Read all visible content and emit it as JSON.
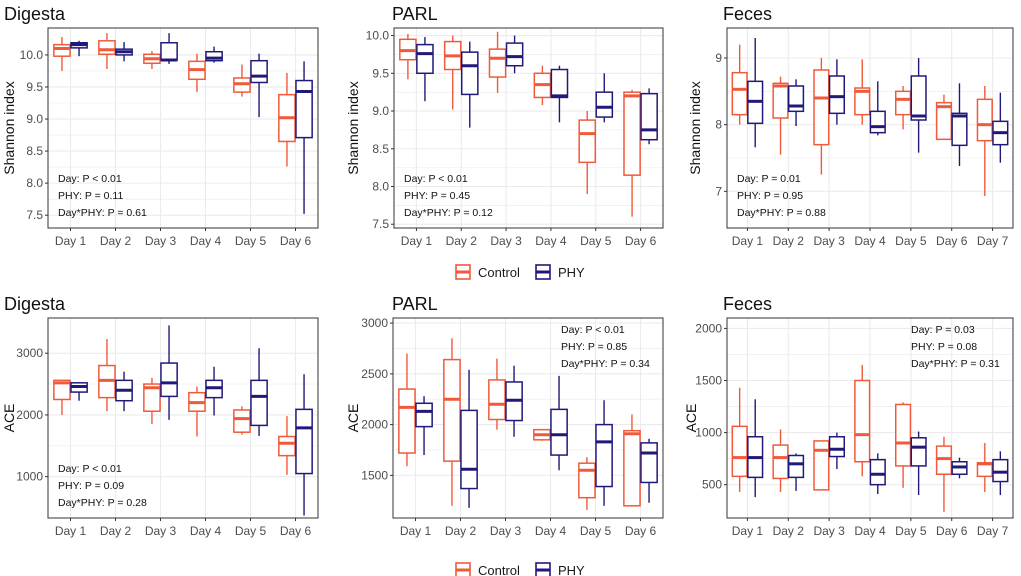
{
  "legend": {
    "items": [
      {
        "label": "Control",
        "color": "#F05A3A"
      },
      {
        "label": "PHY",
        "color": "#1F1A7A"
      }
    ]
  },
  "colors": {
    "control": "#F05A3A",
    "phy": "#1F1A7A",
    "grid": "#EBEBEB",
    "axis": "#333333"
  },
  "chart_data": [
    {
      "type": "boxplot",
      "title": "Digesta",
      "ylabel": "Shannon index",
      "ylim": [
        7.3,
        10.42
      ],
      "yticks": [
        7.5,
        8.0,
        8.5,
        9.0,
        9.5,
        10.0
      ],
      "ytick_labels": [
        "7.5",
        "8.0",
        "8.5",
        "9.0",
        "9.5",
        "10.0"
      ],
      "categories": [
        "Day 1",
        "Day 2",
        "Day 3",
        "Day 4",
        "Day 5",
        "Day 6"
      ],
      "annotations": [
        "Day: P < 0.01",
        "PHY: P = 0.11",
        "Day*PHY: P = 0.61"
      ],
      "annotation_pos": "bottom-left",
      "series": [
        {
          "name": "Control",
          "boxes": [
            [
              9.75,
              9.98,
              10.1,
              10.16,
              10.28
            ],
            [
              9.78,
              10.01,
              10.08,
              10.22,
              10.34
            ],
            [
              9.78,
              9.87,
              9.94,
              10.01,
              10.06
            ],
            [
              9.42,
              9.62,
              9.77,
              9.9,
              10.02
            ],
            [
              9.35,
              9.42,
              9.55,
              9.64,
              9.85
            ],
            [
              8.26,
              8.65,
              9.02,
              9.38,
              9.72
            ]
          ]
        },
        {
          "name": "PHY",
          "boxes": [
            [
              9.98,
              10.11,
              10.16,
              10.19,
              10.22
            ],
            [
              9.9,
              10.0,
              10.05,
              10.09,
              10.2
            ],
            [
              9.86,
              9.92,
              9.92,
              10.19,
              10.34
            ],
            [
              9.88,
              9.91,
              9.95,
              10.05,
              10.13
            ],
            [
              9.03,
              9.57,
              9.67,
              9.91,
              10.02
            ],
            [
              7.52,
              8.71,
              9.43,
              9.6,
              9.9
            ]
          ]
        }
      ]
    },
    {
      "type": "boxplot",
      "title": "PARL",
      "ylabel": "Shannon index",
      "ylim": [
        7.45,
        10.1
      ],
      "yticks": [
        7.5,
        8.0,
        8.5,
        9.0,
        9.5,
        10.0
      ],
      "ytick_labels": [
        "7.5",
        "8.0",
        "8.5",
        "9.0",
        "9.5",
        "10.0"
      ],
      "categories": [
        "Day 1",
        "Day 2",
        "Day 3",
        "Day 4",
        "Day 5",
        "Day 6"
      ],
      "annotations": [
        "Day: P < 0.01",
        "PHY: P = 0.45",
        "Day*PHY: P = 0.12"
      ],
      "annotation_pos": "bottom-left",
      "series": [
        {
          "name": "Control",
          "boxes": [
            [
              9.42,
              9.68,
              9.8,
              9.95,
              10.02
            ],
            [
              9.02,
              9.55,
              9.73,
              9.92,
              10.0
            ],
            [
              9.24,
              9.45,
              9.7,
              9.82,
              10.05
            ],
            [
              9.08,
              9.18,
              9.35,
              9.5,
              9.6
            ],
            [
              7.9,
              8.32,
              8.7,
              8.88,
              9.0
            ],
            [
              7.6,
              8.15,
              9.2,
              9.25,
              9.28
            ]
          ]
        },
        {
          "name": "PHY",
          "boxes": [
            [
              9.13,
              9.5,
              9.76,
              9.88,
              9.98
            ],
            [
              8.78,
              9.22,
              9.6,
              9.78,
              9.92
            ],
            [
              9.5,
              9.6,
              9.72,
              9.9,
              10.0
            ],
            [
              8.85,
              9.18,
              9.2,
              9.55,
              9.6
            ],
            [
              8.85,
              8.92,
              9.05,
              9.25,
              9.5
            ],
            [
              8.56,
              8.62,
              8.75,
              9.23,
              9.3
            ]
          ]
        }
      ]
    },
    {
      "type": "boxplot",
      "title": "Feces",
      "ylabel": "Shannon index",
      "ylim": [
        6.45,
        9.45
      ],
      "yticks": [
        7,
        8,
        9
      ],
      "ytick_labels": [
        "7",
        "8",
        "9"
      ],
      "categories": [
        "Day 1",
        "Day 2",
        "Day 3",
        "Day 4",
        "Day 5",
        "Day 6",
        "Day 7"
      ],
      "annotations": [
        "Day: P = 0.01",
        "PHY: P = 0.95",
        "Day*PHY: P = 0.88"
      ],
      "annotation_pos": "bottom-left",
      "series": [
        {
          "name": "Control",
          "boxes": [
            [
              8.0,
              8.15,
              8.53,
              8.78,
              9.2
            ],
            [
              7.55,
              8.1,
              8.58,
              8.62,
              8.72
            ],
            [
              7.25,
              7.7,
              8.4,
              8.82,
              9.0
            ],
            [
              8.0,
              8.15,
              8.5,
              8.55,
              8.98
            ],
            [
              7.93,
              8.15,
              8.38,
              8.5,
              8.58
            ],
            [
              7.78,
              7.78,
              8.27,
              8.33,
              8.45
            ],
            [
              6.93,
              7.76,
              8.0,
              8.38,
              8.58
            ]
          ]
        },
        {
          "name": "PHY",
          "boxes": [
            [
              7.66,
              8.02,
              8.35,
              8.65,
              9.3
            ],
            [
              7.98,
              8.2,
              8.28,
              8.58,
              8.68
            ],
            [
              8.0,
              8.17,
              8.42,
              8.73,
              8.98
            ],
            [
              7.84,
              7.88,
              7.97,
              8.2,
              8.65
            ],
            [
              7.58,
              8.07,
              8.13,
              8.73,
              9.0
            ],
            [
              7.38,
              7.69,
              8.13,
              8.17,
              8.62
            ],
            [
              7.43,
              7.7,
              7.88,
              8.05,
              8.48
            ]
          ]
        }
      ]
    },
    {
      "type": "boxplot",
      "title": "Digesta",
      "ylabel": "ACE",
      "ylim": [
        330,
        3570
      ],
      "yticks": [
        1000,
        2000,
        3000
      ],
      "ytick_labels": [
        "1000",
        "2000",
        "3000"
      ],
      "categories": [
        "Day 1",
        "Day 2",
        "Day 3",
        "Day 4",
        "Day 5",
        "Day 6"
      ],
      "annotations": [
        "Day: P < 0.01",
        "PHY: P = 0.09",
        "Day*PHY: P = 0.28"
      ],
      "annotation_pos": "bottom-left",
      "series": [
        {
          "name": "Control",
          "boxes": [
            [
              2000,
              2250,
              2520,
              2560,
              2560
            ],
            [
              2060,
              2280,
              2560,
              2800,
              3230
            ],
            [
              1850,
              2060,
              2440,
              2500,
              2600
            ],
            [
              1650,
              2060,
              2200,
              2360,
              2460
            ],
            [
              1680,
              1720,
              1940,
              2080,
              2140
            ],
            [
              1030,
              1340,
              1540,
              1650,
              1980
            ]
          ]
        },
        {
          "name": "PHY",
          "boxes": [
            [
              2230,
              2370,
              2460,
              2520,
              2530
            ],
            [
              2060,
              2230,
              2400,
              2560,
              2700
            ],
            [
              1920,
              2300,
              2520,
              2840,
              3450
            ],
            [
              1990,
              2280,
              2440,
              2560,
              2780
            ],
            [
              1660,
              1830,
              2300,
              2560,
              3080
            ],
            [
              370,
              1050,
              1790,
              2090,
              2660
            ]
          ]
        }
      ]
    },
    {
      "type": "boxplot",
      "title": "PARL",
      "ylabel": "ACE",
      "ylim": [
        1080,
        3050
      ],
      "yticks": [
        1500,
        2000,
        2500,
        3000
      ],
      "ytick_labels": [
        "1500",
        "2000",
        "2500",
        "3000"
      ],
      "categories": [
        "Day 1",
        "Day 2",
        "Day 3",
        "Day 4",
        "Day 5",
        "Day 6"
      ],
      "annotations": [
        "Day: P < 0.01",
        "PHY: P = 0.85",
        "Day*PHY: P = 0.34"
      ],
      "annotation_pos": "top-right",
      "series": [
        {
          "name": "Control",
          "boxes": [
            [
              1590,
              1720,
              2170,
              2350,
              2700
            ],
            [
              1200,
              1640,
              2250,
              2640,
              2850
            ],
            [
              1950,
              2050,
              2200,
              2440,
              2650
            ],
            [
              1840,
              1850,
              1900,
              1950,
              1950
            ],
            [
              1160,
              1280,
              1550,
              1620,
              1680
            ],
            [
              1200,
              1200,
              1910,
              1940,
              2100
            ]
          ]
        },
        {
          "name": "PHY",
          "boxes": [
            [
              1700,
              1980,
              2130,
              2210,
              2280
            ],
            [
              1180,
              1370,
              1560,
              2140,
              2540
            ],
            [
              1880,
              2040,
              2240,
              2420,
              2580
            ],
            [
              1550,
              1700,
              1900,
              2150,
              2480
            ],
            [
              1200,
              1390,
              1830,
              2000,
              2240
            ],
            [
              1230,
              1430,
              1720,
              1820,
              1860
            ]
          ]
        }
      ]
    },
    {
      "type": "boxplot",
      "title": "Feces",
      "ylabel": "ACE",
      "ylim": [
        180,
        2100
      ],
      "yticks": [
        500,
        1000,
        1500,
        2000
      ],
      "ytick_labels": [
        "500",
        "1000",
        "1500",
        "2000"
      ],
      "categories": [
        "Day 1",
        "Day 2",
        "Day 3",
        "Day 4",
        "Day 5",
        "Day 6",
        "Day 7"
      ],
      "annotations": [
        "Day: P = 0.03",
        "PHY: P = 0.08",
        "Day*PHY: P = 0.31"
      ],
      "annotation_pos": "top-right",
      "series": [
        {
          "name": "Control",
          "boxes": [
            [
              430,
              580,
              760,
              1060,
              1430
            ],
            [
              430,
              560,
              760,
              880,
              1030
            ],
            [
              450,
              450,
              830,
              920,
              920
            ],
            [
              580,
              720,
              980,
              1500,
              1650
            ],
            [
              470,
              680,
              900,
              1270,
              1290
            ],
            [
              240,
              600,
              750,
              870,
              960
            ],
            [
              430,
              580,
              700,
              710,
              900
            ]
          ]
        },
        {
          "name": "PHY",
          "boxes": [
            [
              380,
              570,
              760,
              960,
              1320
            ],
            [
              440,
              570,
              700,
              780,
              800
            ],
            [
              650,
              770,
              840,
              960,
              1000
            ],
            [
              410,
              500,
              600,
              740,
              800
            ],
            [
              400,
              680,
              860,
              950,
              1010
            ],
            [
              560,
              600,
              670,
              720,
              760
            ],
            [
              400,
              530,
              620,
              740,
              820
            ]
          ]
        }
      ]
    }
  ]
}
